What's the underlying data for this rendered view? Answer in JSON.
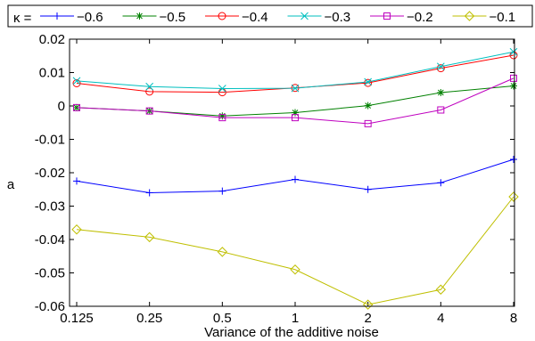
{
  "chart_data": {
    "type": "line",
    "xlabel": "Variance of the additive noise",
    "ylabel": "a",
    "categories": [
      "0.125",
      "0.25",
      "0.5",
      "1",
      "2",
      "4",
      "8"
    ],
    "x_scale": "log2",
    "ylim": [
      -0.06,
      0.02
    ],
    "yticks": [
      -0.06,
      -0.05,
      -0.04,
      -0.03,
      -0.02,
      -0.01,
      0,
      0.01,
      0.02
    ],
    "ytick_labels": [
      "-0.06",
      "-0.05",
      "-0.04",
      "-0.03",
      "-0.02",
      "-0.01",
      "0",
      "0.01",
      "0.02"
    ],
    "grid": false,
    "legend": {
      "title": "κ =",
      "placement": "top",
      "orientation": "horizontal"
    },
    "series": [
      {
        "name": "−0.6",
        "color": "#0000ff",
        "marker": "plus",
        "values": [
          -0.0225,
          -0.026,
          -0.0255,
          -0.022,
          -0.025,
          -0.023,
          -0.016
        ]
      },
      {
        "name": "−0.5",
        "color": "#008000",
        "marker": "asterisk",
        "values": [
          -0.0005,
          -0.0015,
          -0.003,
          -0.002,
          0.0001,
          0.004,
          0.006
        ]
      },
      {
        "name": "−0.4",
        "color": "#ff0000",
        "marker": "circle",
        "values": [
          0.0068,
          0.0043,
          0.0041,
          0.0054,
          0.0069,
          0.0113,
          0.0152
        ]
      },
      {
        "name": "−0.3",
        "color": "#00bfbf",
        "marker": "x",
        "values": [
          0.0075,
          0.0058,
          0.0052,
          0.0053,
          0.0072,
          0.0118,
          0.0162
        ]
      },
      {
        "name": "−0.2",
        "color": "#bf00bf",
        "marker": "square",
        "values": [
          -0.0005,
          -0.0015,
          -0.0035,
          -0.0035,
          -0.0053,
          -0.0012,
          0.0083
        ]
      },
      {
        "name": "−0.1",
        "color": "#bfbf00",
        "marker": "diamond",
        "values": [
          -0.037,
          -0.0393,
          -0.0437,
          -0.049,
          -0.0595,
          -0.055,
          -0.0272
        ]
      }
    ]
  }
}
